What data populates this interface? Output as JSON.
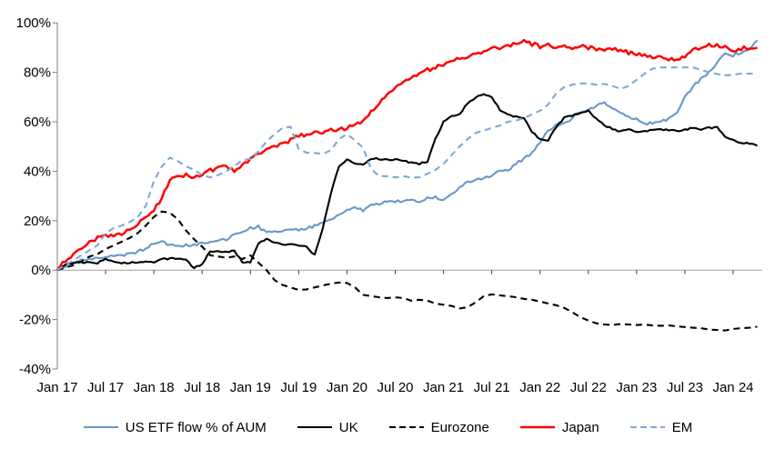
{
  "chart_data": {
    "type": "line",
    "title": "",
    "x_axis": {
      "tick_labels": [
        "Jan 17",
        "Jul 17",
        "Jan 18",
        "Jul 18",
        "Jan 19",
        "Jul 19",
        "Jan 20",
        "Jul 20",
        "Jan 21",
        "Jul 21",
        "Jan 22",
        "Jul 22",
        "Jan 23",
        "Jul 23",
        "Jan 24"
      ],
      "months_per_tick": 6,
      "points_are_monthly": true,
      "first_point": "Jan 2017",
      "last_point": "Apr 2024"
    },
    "y_axis": {
      "min": -40,
      "max": 100,
      "tick_step": 20,
      "tick_labels": [
        "100%",
        "80%",
        "60%",
        "40%",
        "20%",
        "0%",
        "-20%",
        "-40%"
      ],
      "format": "percent",
      "zero_gridline": true
    },
    "legend_position": "bottom",
    "colors": {
      "us_blue": "#6a96c8",
      "em_blue": "#7fa8d4",
      "uk_black": "#000000",
      "eurozone_black": "#000000",
      "japan_red": "#ff0000",
      "axis": "#808080",
      "zero_line": "#9e9e9e",
      "tick": "#404040"
    },
    "series": [
      {
        "id": "us",
        "name": "US ETF flow % of AUM",
        "style": "solid",
        "color": "#6a96c8",
        "values": [
          0,
          1.5,
          3,
          4,
          4.5,
          5,
          5.5,
          5.5,
          6,
          6.5,
          7.5,
          8.5,
          11,
          11.5,
          10,
          9.5,
          10,
          10.3,
          10.7,
          11.3,
          12,
          12.4,
          14.2,
          15.6,
          16.9,
          17.5,
          15,
          15.5,
          16,
          16.5,
          16,
          16.9,
          17.8,
          19.3,
          20.4,
          22.2,
          24,
          25.8,
          24,
          26.5,
          27,
          27.5,
          27.6,
          28,
          28.3,
          28,
          29,
          29.5,
          28,
          30.5,
          33.5,
          35.5,
          36.5,
          37.5,
          38.5,
          40,
          40.5,
          43,
          45,
          47.5,
          52,
          56,
          58.5,
          59.5,
          61.5,
          64,
          65,
          66.5,
          67.5,
          65,
          63.5,
          62,
          61,
          59.5,
          59.3,
          60.5,
          61,
          64,
          70,
          74,
          77.5,
          80,
          84,
          87.5,
          87,
          88,
          89.5,
          93
        ]
      },
      {
        "id": "uk",
        "name": "UK",
        "style": "solid",
        "color": "#000000",
        "values": [
          0,
          2.5,
          3,
          3,
          3.5,
          3,
          4.5,
          3.2,
          3,
          3,
          3.3,
          3.3,
          3.3,
          4.5,
          4.7,
          4.7,
          4,
          1,
          2.5,
          7.5,
          7.6,
          7.6,
          7.6,
          3.3,
          3.3,
          11,
          12.5,
          11,
          10.5,
          10.3,
          10,
          9.5,
          6,
          17,
          31,
          42,
          44.5,
          43,
          42.5,
          45,
          45,
          44.5,
          44.7,
          44,
          43.6,
          43,
          44,
          53,
          60,
          62.5,
          63,
          67.5,
          70,
          71,
          70,
          65,
          62.9,
          62.2,
          61.8,
          56,
          53,
          52.5,
          58,
          61.5,
          62.5,
          63.3,
          64.5,
          61,
          58.5,
          57.3,
          56,
          56.7,
          56,
          56.3,
          56.5,
          56.7,
          56.7,
          56.3,
          56.7,
          57.5,
          56.7,
          57.5,
          57.8,
          53.8,
          52.7,
          51.5,
          51.3,
          50.3
        ]
      },
      {
        "id": "eurozone",
        "name": "Eurozone",
        "style": "dashed",
        "color": "#000000",
        "values": [
          0,
          1,
          2,
          3.5,
          5.5,
          6.5,
          8.5,
          10,
          11.5,
          13,
          15,
          18,
          21.5,
          23.7,
          23.2,
          20.5,
          16,
          12.5,
          9.5,
          6,
          5.5,
          5,
          5.5,
          4.5,
          6,
          3,
          0,
          -4,
          -6,
          -7,
          -8,
          -7.8,
          -7,
          -6.2,
          -5.5,
          -5,
          -5.2,
          -7,
          -10,
          -10.5,
          -11,
          -11.3,
          -11,
          -11.3,
          -12.4,
          -12,
          -12.4,
          -13.5,
          -14,
          -14.5,
          -15.5,
          -15,
          -13,
          -10.5,
          -9.8,
          -10.2,
          -10.5,
          -11,
          -11.6,
          -12,
          -12.7,
          -13.5,
          -14.2,
          -15.3,
          -17,
          -19,
          -20.4,
          -21.5,
          -22,
          -22.2,
          -21.8,
          -22,
          -22.2,
          -22,
          -22.4,
          -22.5,
          -22.4,
          -22.7,
          -23,
          -23.3,
          -23.5,
          -24,
          -24.2,
          -24.4,
          -23.8,
          -23.5,
          -23.3,
          -22.9
        ]
      },
      {
        "id": "japan",
        "name": "Japan",
        "style": "solid",
        "color": "#ff0000",
        "values": [
          0,
          4,
          6.5,
          8.5,
          11,
          13,
          14.3,
          13.5,
          14.5,
          16.3,
          18.5,
          21.5,
          24.5,
          29,
          37,
          38,
          38.5,
          37.5,
          39,
          40.5,
          41,
          42,
          40,
          42.5,
          45,
          47,
          48.5,
          50,
          51,
          52.5,
          54.5,
          55,
          55.5,
          56,
          56.5,
          57,
          57.5,
          58.5,
          60,
          64,
          67.5,
          71,
          74,
          76,
          77.5,
          79.5,
          81,
          82,
          83,
          84.5,
          85.5,
          86.5,
          87.5,
          88.5,
          89.5,
          90,
          90.5,
          91.5,
          92.5,
          91.5,
          90.5,
          91,
          90,
          90.5,
          90,
          90.5,
          90,
          89.5,
          89,
          89.5,
          88.5,
          88,
          87.5,
          87,
          86.5,
          86,
          85.5,
          85,
          86,
          88.7,
          90,
          91.3,
          90.8,
          90,
          88.9,
          89.5,
          90.2,
          90
        ]
      },
      {
        "id": "em",
        "name": "EM",
        "style": "dashed",
        "color": "#7fa8d4",
        "values": [
          0,
          2,
          4,
          6,
          8,
          10,
          15,
          17,
          18,
          19.5,
          21.5,
          26,
          36,
          42,
          45.5,
          44,
          42,
          40.5,
          38.5,
          37.5,
          38.5,
          40,
          42,
          44.5,
          45,
          48,
          52,
          55,
          57.5,
          58,
          49,
          47.5,
          47.4,
          47,
          48.5,
          53,
          55,
          52.5,
          49.5,
          41,
          38,
          38,
          37.5,
          38,
          37.5,
          37.5,
          39,
          40.5,
          43,
          46.5,
          50,
          53,
          55.5,
          56.5,
          57.5,
          58.5,
          60,
          60.5,
          61.5,
          63,
          64.5,
          67,
          71.5,
          74,
          75,
          75.5,
          75.5,
          75,
          75.3,
          74.5,
          73.3,
          74.5,
          77,
          79.5,
          81.5,
          82,
          82,
          82,
          82,
          82,
          81,
          80,
          79.3,
          78.8,
          79,
          79.5,
          79.5,
          79.5
        ]
      }
    ]
  }
}
